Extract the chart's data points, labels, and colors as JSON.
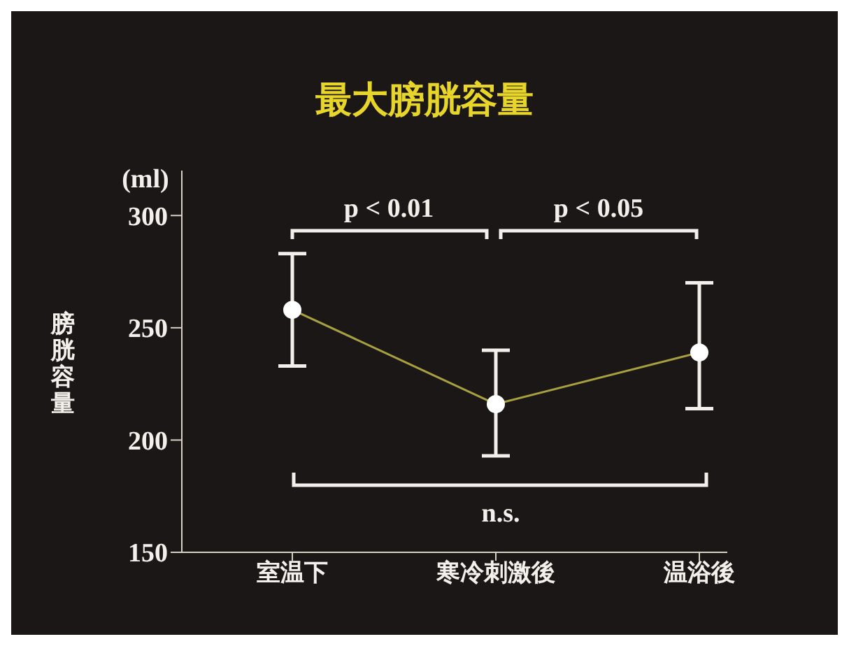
{
  "chart_data": {
    "type": "line",
    "title": "最大膀胱容量",
    "ylabel": "膀胱容量",
    "categories": [
      "室温下",
      "寒冷刺激後",
      "温浴後"
    ],
    "series": [
      {
        "color": "#a8a040",
        "values": [
          258,
          216,
          239
        ],
        "errors": [
          [
            233,
            283
          ],
          [
            193,
            240
          ],
          [
            214,
            270
          ]
        ]
      }
    ],
    "ylim": [
      150,
      320
    ],
    "yticks": [
      150,
      200,
      250,
      300
    ],
    "marker": "circle",
    "annotations": [
      "p < 0.01",
      "p < 0.05",
      "n.s.",
      "(ml)"
    ]
  }
}
